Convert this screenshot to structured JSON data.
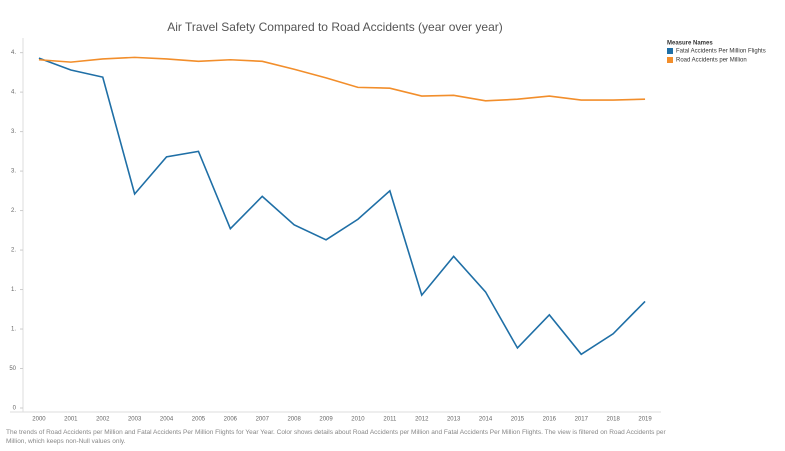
{
  "chart_data": {
    "type": "line",
    "title": "Air Travel Safety Compared to Road Accidents (year over year)",
    "categories": [
      "2000",
      "2001",
      "2002",
      "2003",
      "2004",
      "2005",
      "2006",
      "2007",
      "2008",
      "2009",
      "2010",
      "2011",
      "2012",
      "2013",
      "2014",
      "2015",
      "2016",
      "2017",
      "2018",
      "2019"
    ],
    "series": [
      {
        "name": "Fatal Accidents  Per Million Flights",
        "color": "#1f6fa6",
        "values": [
          443,
          428,
          419,
          271,
          318,
          325,
          227,
          268,
          232,
          213,
          239,
          275,
          143,
          192,
          147,
          76,
          118,
          68,
          94,
          135
        ]
      },
      {
        "name": "Road Accidents per Million",
        "color": "#f28e2b",
        "values": [
          441,
          438,
          442,
          444,
          442,
          439,
          441,
          439,
          429,
          418,
          406,
          405,
          395,
          396,
          389,
          391,
          395,
          390,
          390,
          391
        ]
      }
    ],
    "ylim": [
      0,
      466
    ],
    "yticks": [
      0,
      {
        "value": 50,
        "label": "50"
      },
      {
        "value": 100,
        "label": "1."
      },
      {
        "value": 150,
        "label": "1."
      },
      {
        "value": 200,
        "label": "2."
      },
      {
        "value": 250,
        "label": "2."
      },
      {
        "value": 300,
        "label": "3."
      },
      {
        "value": 350,
        "label": "3."
      },
      {
        "value": 400,
        "label": "4."
      },
      {
        "value": 450,
        "label": "4."
      }
    ],
    "grid": false,
    "legend_title": "Measure Names",
    "legend_position": "right",
    "caption": "The trends of Road Accidents per Million and Fatal Accidents  Per Million Flights for Year  Year.  Color shows details about Road Accidents per Million and Fatal Accidents  Per Million Flights. The view is filtered on Road Accidents per Million, which keeps non-Null values only."
  }
}
